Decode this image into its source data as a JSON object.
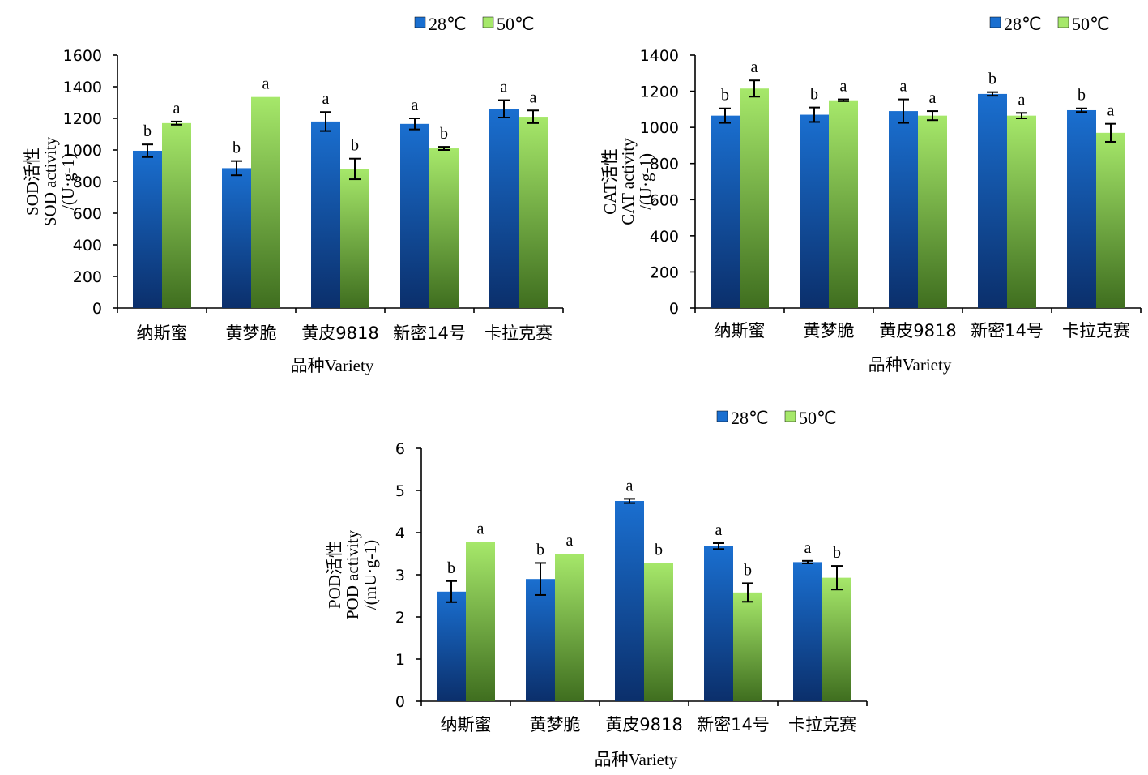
{
  "chart_data": [
    {
      "type": "bar",
      "categories": [
        "纳斯蜜",
        "黄梦脆",
        "黄皮9818",
        "新密14号",
        "卡拉克赛"
      ],
      "series": [
        {
          "name": "28℃",
          "values": [
            995,
            885,
            1180,
            1165,
            1260
          ],
          "errors": [
            40,
            45,
            60,
            35,
            55
          ],
          "sig": [
            "b",
            "b",
            "a",
            "a",
            "a"
          ]
        },
        {
          "name": "50℃",
          "values": [
            1170,
            1335,
            880,
            1010,
            1210
          ],
          "errors": [
            10,
            0,
            65,
            10,
            40
          ],
          "sig": [
            "a",
            "a",
            "b",
            "b",
            "a"
          ]
        }
      ],
      "ylabel_lines": [
        "SOD活性",
        "SOD activity",
        "/(U·g-1)"
      ],
      "xlabel": "品种Variety",
      "ylim": [
        0,
        1600
      ],
      "yticks": [
        0,
        200,
        400,
        600,
        800,
        1000,
        1200,
        1400,
        1600
      ],
      "legend": "top"
    },
    {
      "type": "bar",
      "categories": [
        "纳斯蜜",
        "黄梦脆",
        "黄皮9818",
        "新密14号",
        "卡拉克赛"
      ],
      "series": [
        {
          "name": "28℃",
          "values": [
            1065,
            1070,
            1090,
            1185,
            1095
          ],
          "errors": [
            40,
            40,
            65,
            10,
            10
          ],
          "sig": [
            "b",
            "b",
            "a",
            "b",
            "b"
          ]
        },
        {
          "name": "50℃",
          "values": [
            1215,
            1150,
            1065,
            1065,
            970
          ],
          "errors": [
            45,
            5,
            25,
            15,
            50
          ],
          "sig": [
            "a",
            "a",
            "a",
            "a",
            "a"
          ]
        }
      ],
      "ylabel_lines": [
        "CAT活性",
        "CAT activity",
        "/(U·g-1)"
      ],
      "xlabel": "品种Variety",
      "ylim": [
        0,
        1400
      ],
      "yticks": [
        0,
        200,
        400,
        600,
        800,
        1000,
        1200,
        1400
      ],
      "legend": "top"
    },
    {
      "type": "bar",
      "categories": [
        "纳斯蜜",
        "黄梦脆",
        "黄皮9818",
        "新密14号",
        "卡拉克赛"
      ],
      "series": [
        {
          "name": "28℃",
          "values": [
            2.6,
            2.9,
            4.75,
            3.68,
            3.3
          ],
          "errors": [
            0.25,
            0.38,
            0.05,
            0.07,
            0.03
          ],
          "sig": [
            "b",
            "b",
            "a",
            "a",
            "a"
          ]
        },
        {
          "name": "50℃",
          "values": [
            3.78,
            3.5,
            3.28,
            2.58,
            2.93
          ],
          "errors": [
            0,
            0,
            0,
            0.22,
            0.28
          ],
          "sig": [
            "a",
            "a",
            "b",
            "b",
            "b"
          ]
        }
      ],
      "ylabel_lines": [
        "POD活性",
        "POD activity",
        "/(mU·g-1)"
      ],
      "xlabel": "品种Variety",
      "ylim": [
        0,
        6
      ],
      "yticks": [
        0,
        1,
        2,
        3,
        4,
        5,
        6
      ],
      "legend": "top"
    }
  ],
  "colors": {
    "series_28_top": "#1a6fd0",
    "series_28_bottom": "#0b2f6b",
    "series_50_top": "#a6e86a",
    "series_50_bottom": "#3f6e1f"
  }
}
